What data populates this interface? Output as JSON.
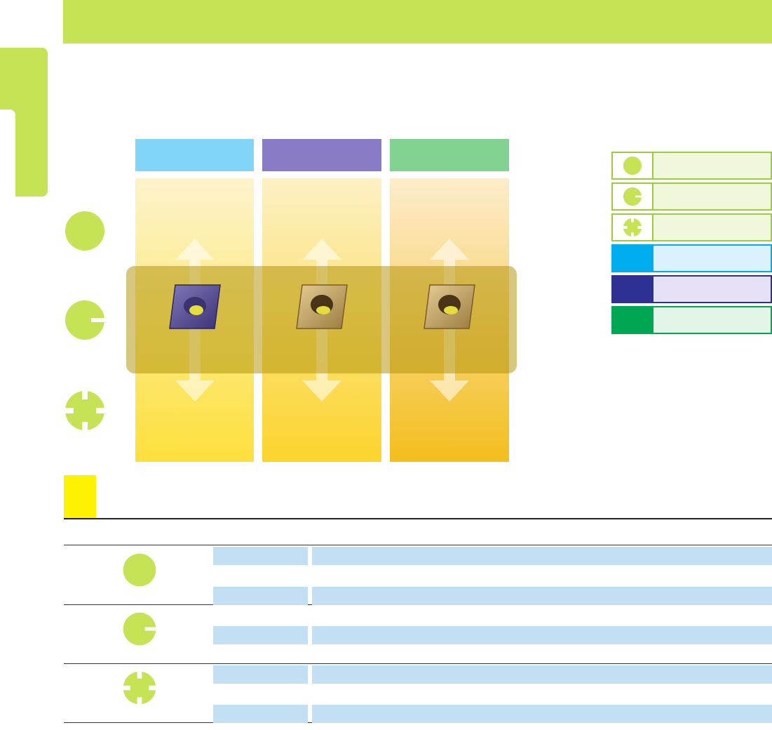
{
  "page": {
    "title": "",
    "section_title": ""
  },
  "columns": [
    {
      "label": "",
      "header_color": "#81d5f7",
      "grad_top": "#fdf3cc",
      "grad_bottom": "#fde03c"
    },
    {
      "label": "",
      "header_color": "#8a7bc6",
      "grad_top": "#fdf0c4",
      "grad_bottom": "#fbd42c"
    },
    {
      "label": "",
      "header_color": "#82d291",
      "grad_top": "#fdeccc",
      "grad_bottom": "#f3be1e"
    }
  ],
  "row_symbols": [
    {
      "icon": "solid-circle-icon"
    },
    {
      "icon": "notched-circle-icon"
    },
    {
      "icon": "cross-notched-circle-icon"
    }
  ],
  "legend": [
    {
      "icon": "solid-circle-icon",
      "label": "",
      "swatch": "#c5e354",
      "fill": "#f0f8dc",
      "border": "#9ccc3c"
    },
    {
      "icon": "notched-circle-icon",
      "label": "",
      "swatch": "#c5e354",
      "fill": "#f0f8dc",
      "border": "#9ccc3c"
    },
    {
      "icon": "cross-notched-circle-icon",
      "label": "",
      "swatch": "#c5e354",
      "fill": "#f0f8dc",
      "border": "#9ccc3c"
    },
    {
      "icon": "",
      "label": "",
      "swatch": "#00aeef",
      "fill": "#d9f1fb",
      "border": "#00aeef"
    },
    {
      "icon": "",
      "label": "",
      "swatch": "#2e3192",
      "fill": "#e6e1f4",
      "border": "#2e3192"
    },
    {
      "icon": "",
      "label": "",
      "swatch": "#00a651",
      "fill": "#e3f5e6",
      "border": "#00a651"
    }
  ],
  "table": {
    "groups": [
      {
        "icon": "solid-circle-icon",
        "rows": [
          {
            "a": "",
            "b": "",
            "shaded": true
          },
          {
            "a": "",
            "b": "",
            "shaded": false
          },
          {
            "a": "",
            "b": "",
            "shaded": true
          }
        ]
      },
      {
        "icon": "notched-circle-icon",
        "rows": [
          {
            "a": "",
            "b": "",
            "shaded": false
          },
          {
            "a": "",
            "b": "",
            "shaded": true
          },
          {
            "a": "",
            "b": "",
            "shaded": false
          }
        ]
      },
      {
        "icon": "cross-notched-circle-icon",
        "rows": [
          {
            "a": "",
            "b": "",
            "shaded": true
          },
          {
            "a": "",
            "b": "",
            "shaded": false
          },
          {
            "a": "",
            "b": "",
            "shaded": true
          }
        ]
      }
    ]
  },
  "colors": {
    "accent_green": "#c5e354",
    "symbol_green": "#c5e354",
    "section_marker": "#fff200",
    "table_shade": "#c3dff4"
  }
}
